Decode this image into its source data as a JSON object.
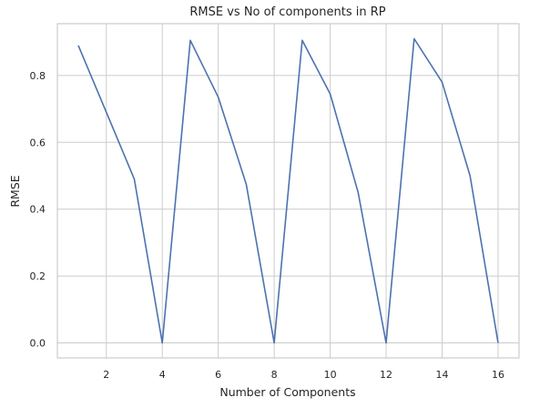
{
  "chart_data": {
    "type": "line",
    "title": "RMSE vs No of components in RP",
    "xlabel": "Number of Components",
    "ylabel": "RMSE",
    "xlim": [
      0.25,
      16.75
    ],
    "ylim": [
      -0.045,
      0.955
    ],
    "xticks": [
      2,
      4,
      6,
      8,
      10,
      12,
      14,
      16
    ],
    "xtick_labels": [
      "2",
      "4",
      "6",
      "8",
      "10",
      "12",
      "14",
      "16"
    ],
    "yticks": [
      0.0,
      0.2,
      0.4,
      0.6,
      0.8
    ],
    "ytick_labels": [
      "0.0",
      "0.2",
      "0.4",
      "0.6",
      "0.8"
    ],
    "grid": true,
    "legend": "none",
    "series": [
      {
        "color": "#4c72b0",
        "x": [
          1,
          2,
          3,
          4,
          5,
          6,
          7,
          8,
          9,
          10,
          11,
          12,
          13,
          14,
          15,
          16
        ],
        "y": [
          0.89,
          0.69,
          0.49,
          0.0,
          0.905,
          0.735,
          0.475,
          0.0,
          0.905,
          0.745,
          0.45,
          0.0,
          0.91,
          0.78,
          0.5,
          0.0
        ]
      }
    ]
  }
}
